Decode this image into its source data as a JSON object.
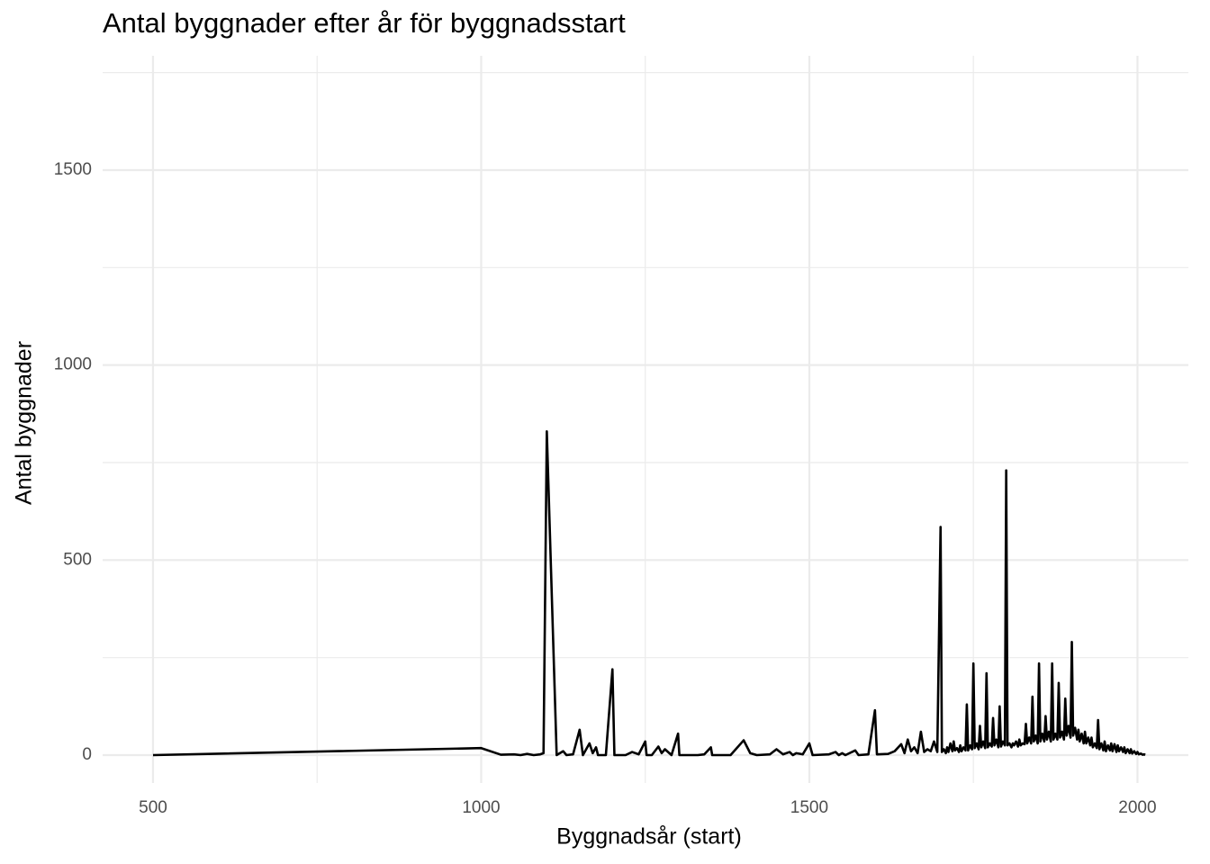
{
  "chart_data": {
    "type": "line",
    "title": "Antal byggnader efter år för byggnadsstart",
    "x_label": "Byggnadsår (start)",
    "y_label": "Antal byggnader",
    "x": [
      500,
      1000,
      1030,
      1050,
      1060,
      1070,
      1080,
      1090,
      1095,
      1100,
      1115,
      1125,
      1130,
      1140,
      1150,
      1155,
      1165,
      1170,
      1175,
      1178,
      1190,
      1200,
      1203,
      1220,
      1230,
      1240,
      1250,
      1252,
      1260,
      1270,
      1275,
      1280,
      1290,
      1300,
      1302,
      1330,
      1340,
      1350,
      1352,
      1380,
      1400,
      1410,
      1420,
      1440,
      1450,
      1460,
      1470,
      1475,
      1480,
      1490,
      1500,
      1505,
      1530,
      1540,
      1545,
      1550,
      1555,
      1570,
      1575,
      1590,
      1600,
      1603,
      1620,
      1630,
      1640,
      1645,
      1650,
      1655,
      1660,
      1665,
      1670,
      1675,
      1680,
      1685,
      1690,
      1695,
      1700,
      1702,
      1705,
      1708,
      1710,
      1712,
      1715,
      1718,
      1720,
      1722,
      1725,
      1728,
      1730,
      1732,
      1735,
      1738,
      1740,
      1742,
      1745,
      1748,
      1750,
      1752,
      1755,
      1758,
      1760,
      1762,
      1765,
      1768,
      1770,
      1772,
      1775,
      1778,
      1780,
      1782,
      1785,
      1788,
      1790,
      1792,
      1795,
      1798,
      1800,
      1802,
      1805,
      1808,
      1810,
      1812,
      1815,
      1818,
      1820,
      1822,
      1825,
      1828,
      1830,
      1832,
      1835,
      1838,
      1840,
      1842,
      1845,
      1848,
      1850,
      1852,
      1855,
      1858,
      1860,
      1862,
      1865,
      1868,
      1870,
      1872,
      1875,
      1878,
      1880,
      1882,
      1885,
      1888,
      1890,
      1892,
      1895,
      1898,
      1900,
      1902,
      1905,
      1908,
      1910,
      1912,
      1915,
      1918,
      1920,
      1922,
      1925,
      1928,
      1930,
      1932,
      1935,
      1938,
      1940,
      1942,
      1945,
      1948,
      1950,
      1952,
      1955,
      1958,
      1960,
      1962,
      1965,
      1968,
      1970,
      1972,
      1975,
      1978,
      1980,
      1982,
      1985,
      1988,
      1990,
      1992,
      1995,
      1998,
      2000,
      2002,
      2005,
      2008,
      2010,
      2012
    ],
    "series": [
      {
        "name": "Antal byggnader",
        "color": "#000000",
        "values": [
          0,
          18,
          1,
          2,
          0,
          3,
          0,
          2,
          5,
          830,
          0,
          10,
          0,
          2,
          65,
          0,
          30,
          5,
          20,
          0,
          0,
          220,
          0,
          0,
          8,
          2,
          35,
          0,
          0,
          22,
          5,
          15,
          0,
          55,
          0,
          0,
          2,
          20,
          0,
          0,
          38,
          5,
          0,
          2,
          15,
          2,
          8,
          0,
          5,
          2,
          30,
          0,
          2,
          8,
          0,
          5,
          0,
          12,
          0,
          2,
          115,
          2,
          3,
          10,
          28,
          5,
          40,
          10,
          20,
          5,
          60,
          8,
          15,
          10,
          35,
          8,
          585,
          8,
          15,
          5,
          20,
          8,
          30,
          10,
          35,
          12,
          18,
          8,
          25,
          10,
          20,
          12,
          130,
          12,
          25,
          15,
          235,
          18,
          30,
          15,
          75,
          20,
          35,
          18,
          210,
          20,
          30,
          22,
          95,
          25,
          40,
          20,
          125,
          22,
          35,
          25,
          730,
          25,
          30,
          20,
          30,
          25,
          35,
          22,
          40,
          25,
          30,
          28,
          80,
          30,
          45,
          30,
          150,
          35,
          50,
          30,
          235,
          35,
          55,
          35,
          100,
          40,
          60,
          35,
          235,
          40,
          55,
          40,
          185,
          45,
          60,
          40,
          145,
          50,
          75,
          45,
          290,
          50,
          70,
          40,
          65,
          35,
          55,
          30,
          60,
          30,
          45,
          25,
          45,
          20,
          30,
          18,
          90,
          15,
          30,
          12,
          35,
          10,
          25,
          12,
          30,
          10,
          28,
          8,
          25,
          10,
          20,
          8,
          20,
          5,
          15,
          5,
          15,
          4,
          10,
          3,
          8,
          2,
          4,
          1,
          2,
          1
        ]
      }
    ],
    "xlim": [
      423.2,
      2077.6
    ],
    "xticks": [
      500,
      1000,
      1500,
      2000
    ],
    "x_minor_ticks": [
      750,
      1250,
      1750
    ],
    "ylim": [
      -71.5,
      1793
    ],
    "yticks": [
      0,
      500,
      1000,
      1500
    ],
    "y_minor_ticks": [
      250,
      750,
      1250,
      1750
    ],
    "grid": true
  }
}
